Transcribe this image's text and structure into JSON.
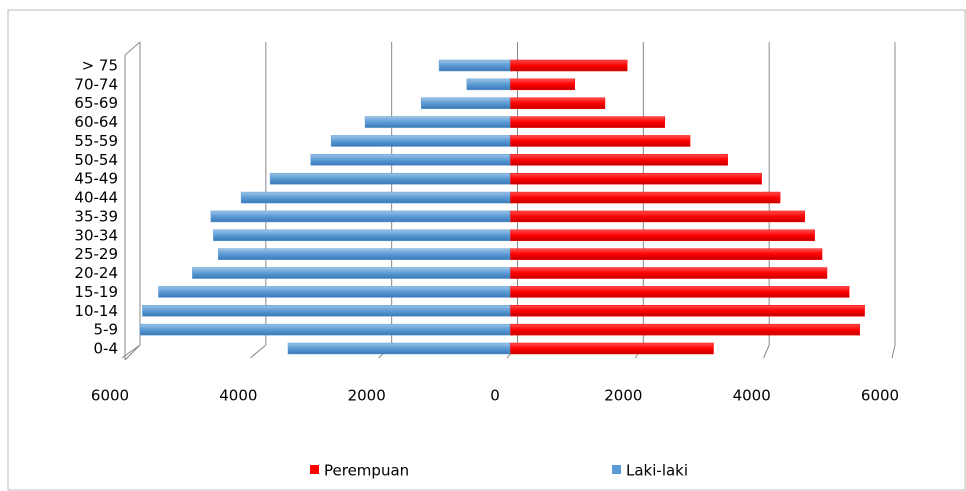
{
  "chart_data": {
    "type": "bar",
    "orientation": "horizontal",
    "categories": [
      "0-4",
      "5-9",
      "10-14",
      "15-19",
      "20-24",
      "25-29",
      "30-34",
      "35-39",
      "40-44",
      "45-49",
      "50-54",
      "55-59",
      "60-64",
      "65-69",
      "70-74",
      "> 75"
    ],
    "series": [
      {
        "name": "Perempuan",
        "color": "#ff0000",
        "values": [
          3300,
          5670,
          5750,
          5500,
          5140,
          5060,
          4940,
          4780,
          4380,
          4080,
          3530,
          2920,
          2510,
          1540,
          1050,
          1900
        ]
      },
      {
        "name": "Laki-laki",
        "color": "#5b9bd5",
        "values": [
          -3600,
          -6000,
          -5960,
          -5700,
          -5150,
          -4730,
          -4810,
          -4850,
          -4360,
          -3890,
          -3230,
          -2900,
          -2350,
          -1440,
          -700,
          -1150
        ]
      }
    ],
    "xlim": [
      -6000,
      6000
    ],
    "xticks": [
      {
        "value": -6000,
        "label": "6000"
      },
      {
        "value": -4000,
        "label": "4000"
      },
      {
        "value": -2000,
        "label": "2000"
      },
      0,
      2000,
      4000,
      6000
    ],
    "grid": true,
    "legend": "bottom"
  }
}
